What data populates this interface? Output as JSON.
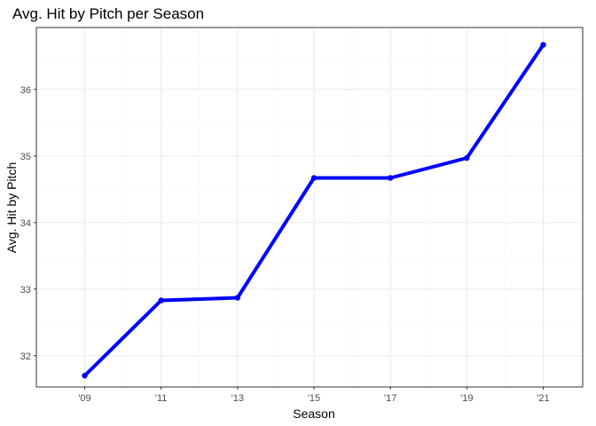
{
  "chart_data": {
    "type": "line",
    "title": "Avg. Hit by Pitch per Season",
    "xlabel": "Season",
    "ylabel": "Avg. Hit by Pitch",
    "categories": [
      "'09",
      "'11",
      "'13",
      "'15",
      "'17",
      "'19",
      "'21"
    ],
    "series": [
      {
        "values": [
          31.7,
          32.83,
          32.87,
          34.67,
          34.67,
          34.97,
          36.67
        ]
      }
    ],
    "ylim": [
      31.53,
      36.93
    ],
    "yticks": [
      32,
      33,
      34,
      35,
      36
    ],
    "grid": true,
    "legend": "none",
    "colors": {
      "line": "#0000ff",
      "grid_major": "#ebebeb",
      "grid_minor": "#f5f5f5",
      "panel_border": "#333333",
      "tick_text": "#4d4d4d"
    }
  }
}
